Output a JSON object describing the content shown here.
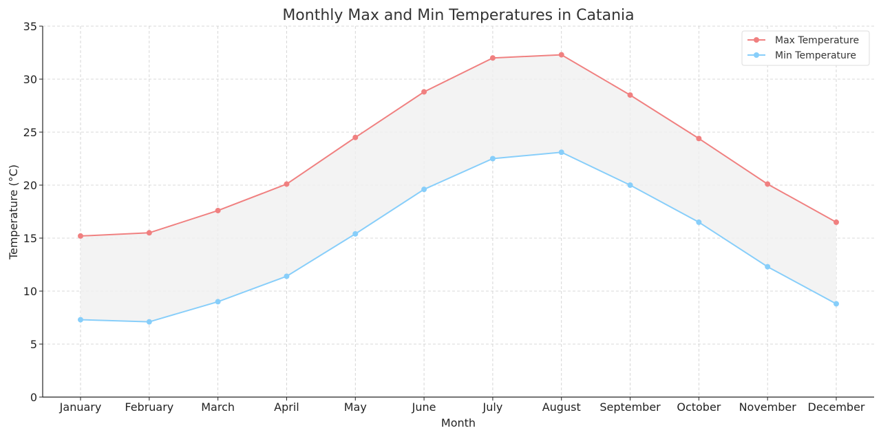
{
  "chart_data": {
    "type": "line",
    "title": "Monthly Max and Min Temperatures in Catania",
    "xlabel": "Month",
    "ylabel": "Temperature (°C)",
    "categories": [
      "January",
      "February",
      "March",
      "April",
      "May",
      "June",
      "July",
      "August",
      "September",
      "October",
      "November",
      "December"
    ],
    "ylim": [
      0,
      35
    ],
    "yticks": [
      0,
      5,
      10,
      15,
      20,
      25,
      30,
      35
    ],
    "grid": true,
    "legend_position": "top-right",
    "fill_between": {
      "color": "#f0f0f0"
    },
    "series": [
      {
        "name": "Max Temperature",
        "color": "#F08080",
        "values": [
          15.2,
          15.5,
          17.6,
          20.1,
          24.5,
          28.8,
          32.0,
          32.3,
          28.5,
          24.4,
          20.1,
          16.5
        ]
      },
      {
        "name": "Min Temperature",
        "color": "#87CEFA",
        "values": [
          7.3,
          7.1,
          9.0,
          11.4,
          15.4,
          19.6,
          22.5,
          23.1,
          20.0,
          16.5,
          12.3,
          8.8
        ]
      }
    ]
  }
}
